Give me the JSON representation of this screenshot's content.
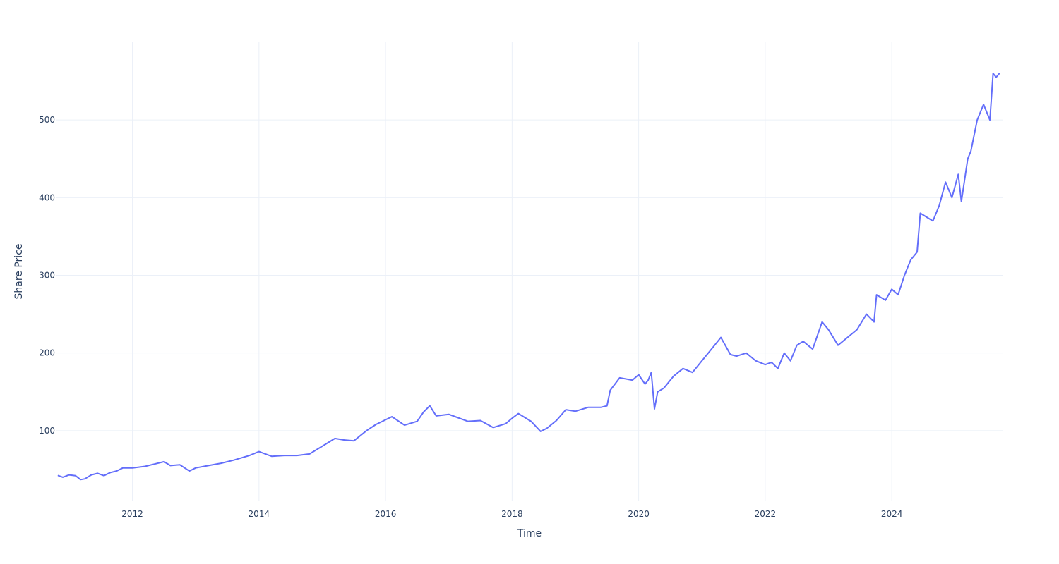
{
  "chart_data": {
    "type": "line",
    "title": "",
    "xlabel": "Time",
    "ylabel": "Share Price",
    "xlim": [
      2010.8,
      2025.75
    ],
    "ylim": [
      10,
      600
    ],
    "x_ticks": [
      2012,
      2014,
      2016,
      2018,
      2020,
      2022,
      2024
    ],
    "x_tick_labels": [
      "2012",
      "2014",
      "2016",
      "2018",
      "2020",
      "2022",
      "2024"
    ],
    "y_ticks": [
      100,
      200,
      300,
      400,
      500
    ],
    "y_tick_labels": [
      "100",
      "200",
      "300",
      "400",
      "500"
    ],
    "grid": true,
    "legend": false,
    "series": [
      {
        "color": "#636efa",
        "x": [
          2010.83,
          2010.9,
          2011.0,
          2011.1,
          2011.18,
          2011.25,
          2011.35,
          2011.45,
          2011.55,
          2011.65,
          2011.75,
          2011.85,
          2012.0,
          2012.2,
          2012.35,
          2012.5,
          2012.6,
          2012.75,
          2012.9,
          2013.0,
          2013.2,
          2013.4,
          2013.6,
          2013.85,
          2014.0,
          2014.2,
          2014.4,
          2014.6,
          2014.8,
          2015.0,
          2015.2,
          2015.35,
          2015.5,
          2015.7,
          2015.85,
          2015.95,
          2016.1,
          2016.3,
          2016.5,
          2016.6,
          2016.7,
          2016.8,
          2017.0,
          2017.1,
          2017.3,
          2017.5,
          2017.7,
          2017.9,
          2018.0,
          2018.1,
          2018.3,
          2018.45,
          2018.55,
          2018.7,
          2018.85,
          2019.0,
          2019.2,
          2019.4,
          2019.5,
          2019.55,
          2019.7,
          2019.9,
          2020.0,
          2020.1,
          2020.15,
          2020.2,
          2020.25,
          2020.3,
          2020.4,
          2020.55,
          2020.7,
          2020.85,
          2021.0,
          2021.15,
          2021.3,
          2021.45,
          2021.55,
          2021.7,
          2021.85,
          2022.0,
          2022.1,
          2022.2,
          2022.3,
          2022.4,
          2022.5,
          2022.6,
          2022.75,
          2022.9,
          2023.0,
          2023.15,
          2023.3,
          2023.45,
          2023.6,
          2023.72,
          2023.76,
          2023.9,
          2024.0,
          2024.1,
          2024.2,
          2024.3,
          2024.4,
          2024.45,
          2024.55,
          2024.65,
          2024.75,
          2024.85,
          2024.95,
          2025.05,
          2025.1,
          2025.2,
          2025.25,
          2025.35,
          2025.45,
          2025.55,
          2025.6,
          2025.65,
          2025.7
        ],
        "y": [
          42,
          40,
          43,
          42,
          37,
          38,
          43,
          45,
          42,
          46,
          48,
          52,
          52,
          54,
          57,
          60,
          55,
          56,
          48,
          52,
          55,
          58,
          62,
          68,
          73,
          67,
          68,
          68,
          70,
          80,
          90,
          88,
          87,
          100,
          108,
          112,
          118,
          107,
          112,
          124,
          132,
          119,
          121,
          118,
          112,
          113,
          104,
          109,
          116,
          122,
          112,
          99,
          103,
          113,
          127,
          125,
          130,
          130,
          132,
          152,
          168,
          165,
          172,
          160,
          165,
          175,
          128,
          150,
          155,
          170,
          180,
          175,
          190,
          205,
          220,
          198,
          196,
          200,
          190,
          185,
          188,
          180,
          200,
          190,
          210,
          215,
          205,
          240,
          230,
          210,
          220,
          230,
          250,
          240,
          275,
          268,
          282,
          275,
          300,
          320,
          330,
          380,
          375,
          370,
          390,
          420,
          400,
          430,
          395,
          450,
          460,
          500,
          520,
          500,
          560,
          555,
          560
        ]
      }
    ]
  }
}
